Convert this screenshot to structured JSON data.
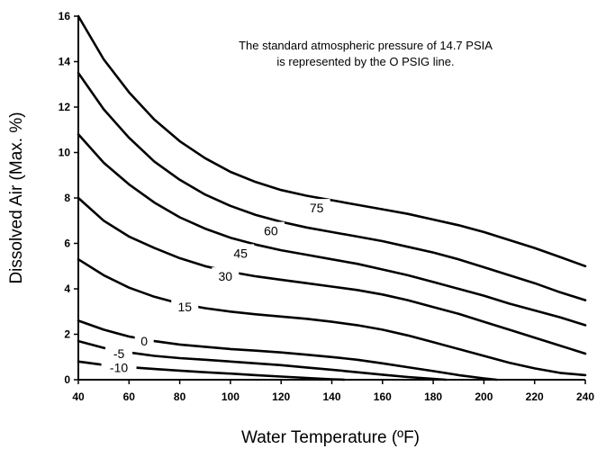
{
  "chart_data": {
    "type": "line",
    "title": "",
    "xlabel": "Water Temperature (ºF)",
    "ylabel": "Dissolved Air (Max. %)",
    "xlim": [
      40,
      240
    ],
    "ylim": [
      0,
      16
    ],
    "x_ticks": [
      "40",
      "60",
      "80",
      "100",
      "120",
      "140",
      "160",
      "180",
      "200",
      "220",
      "240"
    ],
    "y_ticks": [
      "0",
      "2",
      "4",
      "6",
      "8",
      "10",
      "12",
      "14",
      "16"
    ],
    "grid": false,
    "annotation": [
      "The standard atmospheric pressure of 14.7 PSIA",
      "is represented by the O PSIG line."
    ],
    "series": [
      {
        "name": "75",
        "x": [
          40,
          50,
          60,
          70,
          80,
          90,
          100,
          110,
          120,
          130,
          140,
          150,
          160,
          170,
          180,
          190,
          200,
          210,
          220,
          230,
          240
        ],
        "values": [
          16.0,
          14.1,
          12.65,
          11.45,
          10.5,
          9.75,
          9.15,
          8.7,
          8.35,
          8.1,
          7.9,
          7.7,
          7.5,
          7.3,
          7.05,
          6.8,
          6.5,
          6.15,
          5.8,
          5.4,
          5.0
        ]
      },
      {
        "name": "60",
        "x": [
          40,
          50,
          60,
          70,
          80,
          90,
          100,
          110,
          120,
          130,
          140,
          150,
          160,
          170,
          180,
          190,
          200,
          210,
          220,
          230,
          240
        ],
        "values": [
          13.5,
          11.9,
          10.65,
          9.6,
          8.8,
          8.15,
          7.65,
          7.25,
          6.95,
          6.7,
          6.5,
          6.3,
          6.1,
          5.85,
          5.6,
          5.3,
          4.95,
          4.6,
          4.25,
          3.85,
          3.5
        ]
      },
      {
        "name": "45",
        "x": [
          40,
          50,
          60,
          70,
          80,
          90,
          100,
          110,
          120,
          130,
          140,
          150,
          160,
          170,
          180,
          190,
          200,
          210,
          220,
          230,
          240
        ],
        "values": [
          10.8,
          9.55,
          8.6,
          7.8,
          7.15,
          6.65,
          6.25,
          5.95,
          5.7,
          5.5,
          5.3,
          5.1,
          4.85,
          4.6,
          4.3,
          4.0,
          3.7,
          3.35,
          3.05,
          2.75,
          2.4
        ]
      },
      {
        "name": "30",
        "x": [
          40,
          50,
          60,
          70,
          80,
          90,
          100,
          110,
          120,
          130,
          140,
          150,
          160,
          170,
          180,
          190,
          200,
          210,
          220,
          230,
          240
        ],
        "values": [
          8.0,
          7.0,
          6.3,
          5.8,
          5.35,
          5.0,
          4.75,
          4.55,
          4.4,
          4.25,
          4.1,
          3.95,
          3.75,
          3.5,
          3.2,
          2.9,
          2.55,
          2.2,
          1.85,
          1.5,
          1.15
        ]
      },
      {
        "name": "15",
        "x": [
          40,
          50,
          60,
          70,
          80,
          90,
          100,
          110,
          120,
          130,
          140,
          150,
          160,
          170,
          180,
          190,
          200,
          210,
          220,
          230,
          240
        ],
        "values": [
          5.3,
          4.6,
          4.05,
          3.65,
          3.35,
          3.15,
          3.0,
          2.88,
          2.78,
          2.68,
          2.55,
          2.4,
          2.2,
          1.95,
          1.65,
          1.35,
          1.05,
          0.75,
          0.5,
          0.3,
          0.2
        ]
      },
      {
        "name": "0",
        "x": [
          40,
          50,
          60,
          70,
          80,
          90,
          100,
          110,
          120,
          130,
          140,
          150,
          160,
          170,
          180,
          190,
          200,
          205
        ],
        "values": [
          2.6,
          2.2,
          1.9,
          1.7,
          1.55,
          1.45,
          1.35,
          1.28,
          1.2,
          1.1,
          1.0,
          0.88,
          0.72,
          0.55,
          0.38,
          0.2,
          0.06,
          0.0
        ]
      },
      {
        "name": "-5",
        "x": [
          40,
          50,
          60,
          70,
          80,
          90,
          100,
          110,
          120,
          130,
          140,
          150,
          160,
          170,
          180,
          185
        ],
        "values": [
          1.7,
          1.4,
          1.2,
          1.05,
          0.95,
          0.88,
          0.8,
          0.72,
          0.64,
          0.54,
          0.44,
          0.33,
          0.22,
          0.12,
          0.04,
          0.0
        ]
      },
      {
        "name": "-10",
        "x": [
          40,
          50,
          60,
          70,
          80,
          90,
          100,
          110,
          120,
          130,
          140,
          145
        ],
        "values": [
          0.8,
          0.65,
          0.55,
          0.47,
          0.4,
          0.33,
          0.27,
          0.2,
          0.14,
          0.08,
          0.02,
          0.0
        ]
      }
    ],
    "curve_labels": [
      {
        "series": "75",
        "x": 134,
        "y": 7.56
      },
      {
        "series": "60",
        "x": 116,
        "y": 6.55
      },
      {
        "series": "45",
        "x": 104,
        "y": 5.57
      },
      {
        "series": "30",
        "x": 98,
        "y": 4.55
      },
      {
        "series": "15",
        "x": 82,
        "y": 3.2
      },
      {
        "series": "0",
        "x": 66,
        "y": 1.7
      },
      {
        "series": "-5",
        "x": 56,
        "y": 1.15
      },
      {
        "series": "-10",
        "x": 56,
        "y": 0.53
      }
    ]
  }
}
